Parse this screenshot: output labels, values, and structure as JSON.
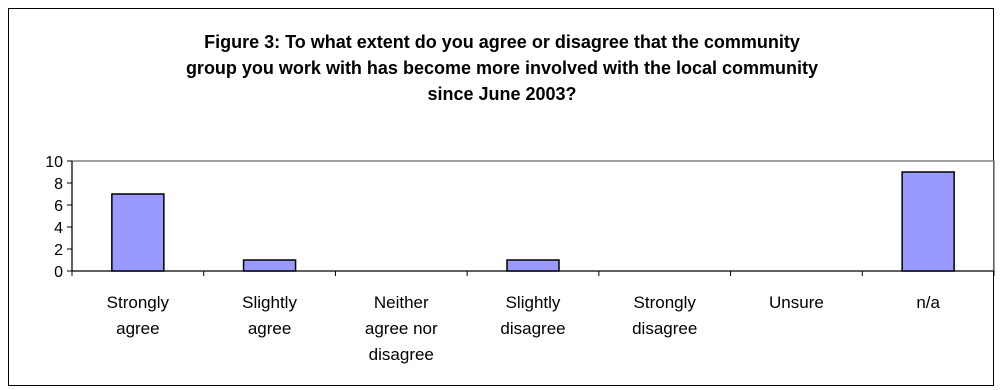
{
  "chart_data": {
    "type": "bar",
    "title": "Figure 3: To what extent do you agree or disagree that the community\ngroup you work with has become more involved with the local community\nsince June 2003?",
    "xlabel": "",
    "ylabel": "",
    "categories": [
      [
        "Strongly",
        "agree"
      ],
      [
        "Slightly",
        "agree"
      ],
      [
        "Neither",
        "agree nor",
        "disagree"
      ],
      [
        "Slightly",
        "disagree"
      ],
      [
        "Strongly",
        "disagree"
      ],
      [
        "Unsure"
      ],
      [
        "n/a"
      ]
    ],
    "values": [
      7,
      1,
      0,
      1,
      0,
      0,
      9
    ],
    "ylim": [
      0,
      10
    ],
    "yticks": [
      0,
      2,
      4,
      6,
      8,
      10
    ],
    "grid": false,
    "legend": "none",
    "bar_color": "#9999ff",
    "bar_border_color": "#000000"
  }
}
